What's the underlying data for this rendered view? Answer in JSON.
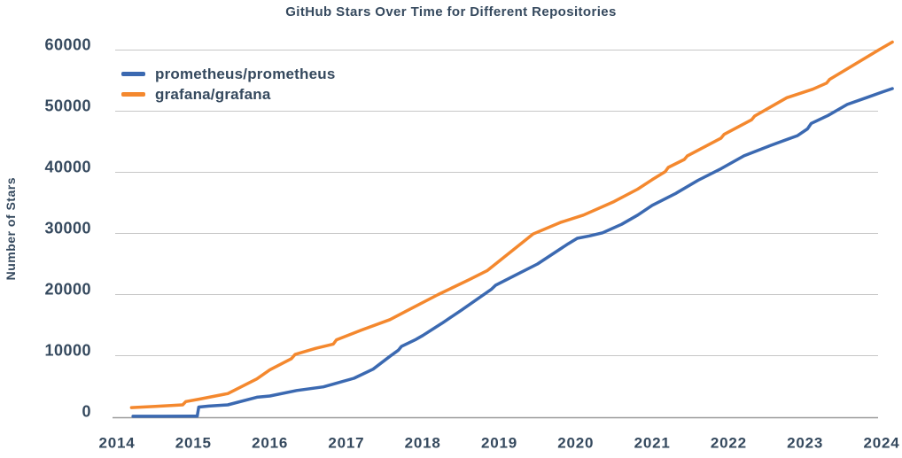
{
  "title": "GitHub Stars Over Time for Different Repositories",
  "chart_data": {
    "type": "line",
    "title": "GitHub Stars Over Time for Different Repositories",
    "xlabel": "",
    "ylabel": "Number of Stars",
    "xlim": [
      2013.95,
      2024.25
    ],
    "ylim": [
      0,
      62500
    ],
    "x_ticks": [
      2014,
      2015,
      2016,
      2017,
      2018,
      2019,
      2020,
      2021,
      2022,
      2023,
      2024
    ],
    "y_ticks": [
      0,
      10000,
      20000,
      30000,
      40000,
      50000,
      60000
    ],
    "grid": "horizontal",
    "legend_position": "upper-left-inside",
    "colors": {
      "text": "#35495e",
      "gridline": "#c6c6c6",
      "axis_line": "#9a9a9a",
      "background": "#ffffff"
    },
    "series": [
      {
        "name": "prometheus/prometheus",
        "color": "#3b69b1",
        "points": [
          [
            2014.21,
            80
          ],
          [
            2014.6,
            90
          ],
          [
            2015.0,
            110
          ],
          [
            2015.05,
            120
          ],
          [
            2015.07,
            1600
          ],
          [
            2015.2,
            1750
          ],
          [
            2015.45,
            1950
          ],
          [
            2015.83,
            3200
          ],
          [
            2016.0,
            3400
          ],
          [
            2016.35,
            4300
          ],
          [
            2016.7,
            4900
          ],
          [
            2017.1,
            6300
          ],
          [
            2017.35,
            7800
          ],
          [
            2017.57,
            9900
          ],
          [
            2017.68,
            10900
          ],
          [
            2017.72,
            11500
          ],
          [
            2017.9,
            12600
          ],
          [
            2018.0,
            13300
          ],
          [
            2018.25,
            15300
          ],
          [
            2018.5,
            17400
          ],
          [
            2018.9,
            20900
          ],
          [
            2018.95,
            21500
          ],
          [
            2019.2,
            23100
          ],
          [
            2019.5,
            25000
          ],
          [
            2019.9,
            28300
          ],
          [
            2020.02,
            29200
          ],
          [
            2020.18,
            29600
          ],
          [
            2020.35,
            30100
          ],
          [
            2020.6,
            31500
          ],
          [
            2020.81,
            33000
          ],
          [
            2021.0,
            34600
          ],
          [
            2021.3,
            36500
          ],
          [
            2021.6,
            38700
          ],
          [
            2021.9,
            40600
          ],
          [
            2022.2,
            42700
          ],
          [
            2022.55,
            44400
          ],
          [
            2022.9,
            46000
          ],
          [
            2023.03,
            47100
          ],
          [
            2023.08,
            48000
          ],
          [
            2023.3,
            49300
          ],
          [
            2023.55,
            51100
          ],
          [
            2023.8,
            52200
          ],
          [
            2024.0,
            53100
          ],
          [
            2024.14,
            53700
          ]
        ]
      },
      {
        "name": "grafana/grafana",
        "color": "#f4882e",
        "points": [
          [
            2014.19,
            1500
          ],
          [
            2014.5,
            1700
          ],
          [
            2014.86,
            1950
          ],
          [
            2014.9,
            2500
          ],
          [
            2015.08,
            2900
          ],
          [
            2015.45,
            3800
          ],
          [
            2015.83,
            6200
          ],
          [
            2016.0,
            7700
          ],
          [
            2016.28,
            9500
          ],
          [
            2016.33,
            10200
          ],
          [
            2016.6,
            11200
          ],
          [
            2016.83,
            11900
          ],
          [
            2016.87,
            12600
          ],
          [
            2017.2,
            14200
          ],
          [
            2017.57,
            15900
          ],
          [
            2017.8,
            17400
          ],
          [
            2018.2,
            20000
          ],
          [
            2018.6,
            22400
          ],
          [
            2018.84,
            23900
          ],
          [
            2019.0,
            25500
          ],
          [
            2019.44,
            29900
          ],
          [
            2019.8,
            31800
          ],
          [
            2020.1,
            33000
          ],
          [
            2020.5,
            35200
          ],
          [
            2020.81,
            37250
          ],
          [
            2021.0,
            38800
          ],
          [
            2021.17,
            40100
          ],
          [
            2021.21,
            40800
          ],
          [
            2021.42,
            42100
          ],
          [
            2021.46,
            42700
          ],
          [
            2021.9,
            45600
          ],
          [
            2021.94,
            46200
          ],
          [
            2022.3,
            48600
          ],
          [
            2022.34,
            49200
          ],
          [
            2022.76,
            52200
          ],
          [
            2023.1,
            53600
          ],
          [
            2023.28,
            54600
          ],
          [
            2023.32,
            55200
          ],
          [
            2023.6,
            57300
          ],
          [
            2023.96,
            60000
          ],
          [
            2024.14,
            61300
          ]
        ]
      }
    ]
  }
}
